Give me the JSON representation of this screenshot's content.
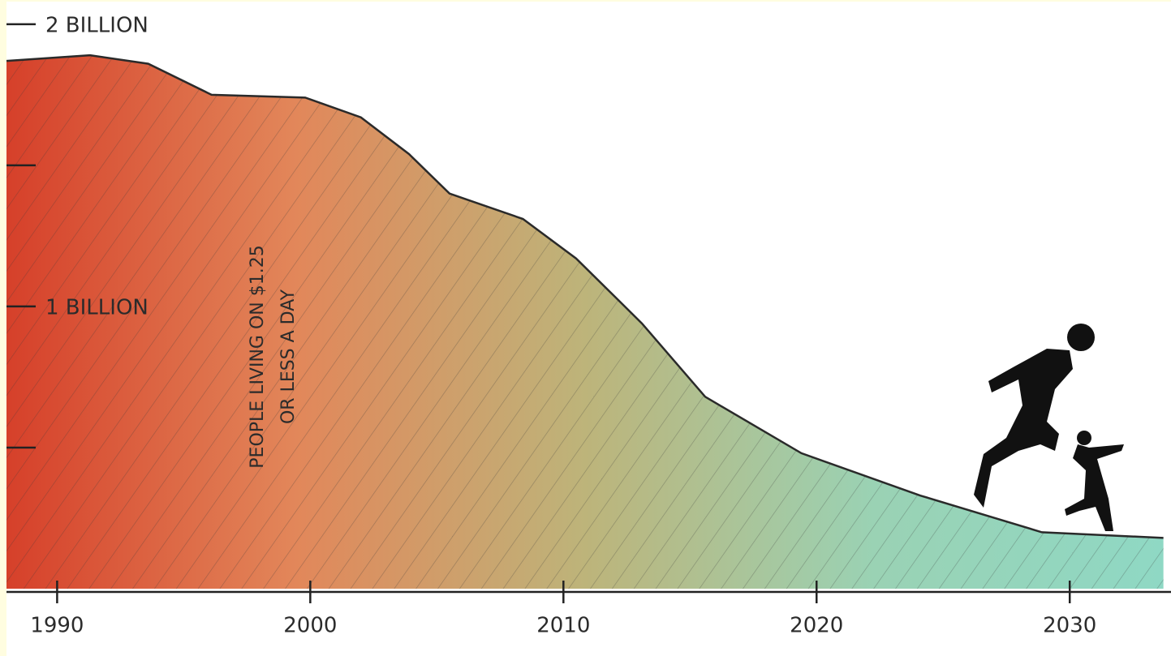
{
  "chart_data": {
    "type": "area",
    "annotation": [
      "PEOPLE LIVING ON $1.25",
      "OR LESS A DAY"
    ],
    "x": [
      1988,
      1991.3,
      1993.6,
      1996.1,
      1999.8,
      2002,
      2003.9,
      2005.5,
      2008.4,
      2010.5,
      2013.1,
      2015.6,
      2019.4,
      2024.1,
      2028.9,
      2033.7
    ],
    "values": [
      1.87,
      1.89,
      1.86,
      1.75,
      1.74,
      1.67,
      1.54,
      1.4,
      1.31,
      1.17,
      0.94,
      0.68,
      0.48,
      0.33,
      0.2,
      0.18
    ],
    "gradient": [
      "#d6402a",
      "#e2875a",
      "#bdb47a",
      "#9ad2b4",
      "#8fd8c4"
    ],
    "outline_color": "#2a2a2a",
    "hatch": true,
    "xlim": [
      1988,
      2034
    ],
    "ylim": [
      0,
      2.08
    ],
    "xticks": [
      1990,
      2000,
      2010,
      2020,
      2030
    ],
    "yticks": [
      {
        "value": 1,
        "label": "1 BILLION"
      },
      {
        "value": 2,
        "label": "2 BILLION"
      }
    ],
    "minor_yticks": [
      0.5,
      1.5
    ]
  }
}
